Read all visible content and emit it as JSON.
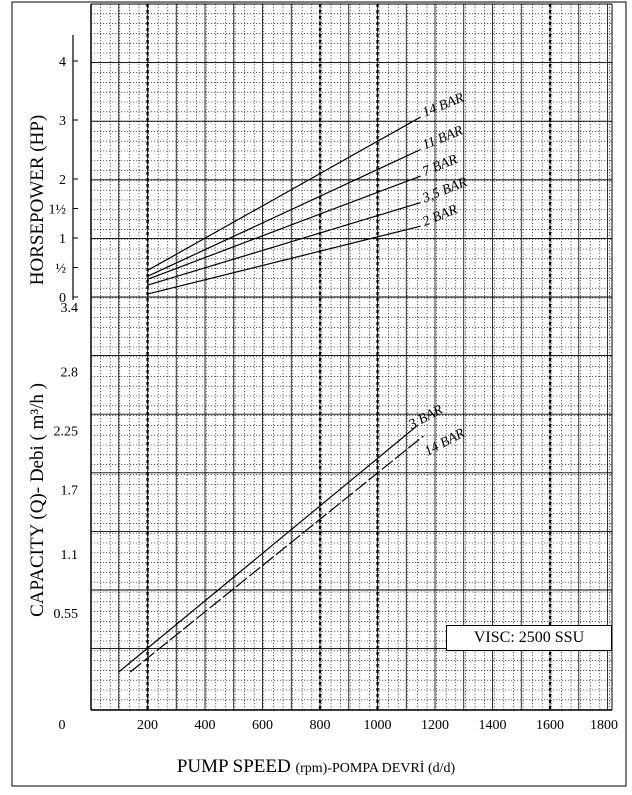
{
  "chart_data": [
    {
      "type": "line",
      "name": "horsepower",
      "ylabel": "HORSEPOWER  (HP)",
      "xlabel": "",
      "xlim": [
        0,
        1800
      ],
      "ylim": [
        0,
        4
      ],
      "yticks": [
        {
          "value": 0,
          "label": "0"
        },
        {
          "value": 0.5,
          "label": "½"
        },
        {
          "value": 1,
          "label": "1"
        },
        {
          "value": 1.5,
          "label": "1½"
        },
        {
          "value": 2,
          "label": "2"
        },
        {
          "value": 3,
          "label": "3"
        },
        {
          "value": 4,
          "label": "4"
        }
      ],
      "series": [
        {
          "name": "14 BAR",
          "x": [
            200,
            1150
          ],
          "y": [
            0.45,
            3.05
          ]
        },
        {
          "name": "11 BAR",
          "x": [
            200,
            1150
          ],
          "y": [
            0.35,
            2.5
          ]
        },
        {
          "name": "7 BAR",
          "x": [
            200,
            1150
          ],
          "y": [
            0.3,
            2.05
          ]
        },
        {
          "name": "3,5 BAR",
          "x": [
            200,
            1150
          ],
          "y": [
            0.2,
            1.6
          ]
        },
        {
          "name": "2 BAR",
          "x": [
            200,
            1150
          ],
          "y": [
            0.05,
            1.2
          ]
        }
      ]
    },
    {
      "type": "line",
      "name": "capacity",
      "ylabel": "CAPACITY (Q)- Debi ( m³/h )",
      "xlabel": "PUMP SPEED (rpm)-POMPA DEVRİ (d/d)",
      "xlim": [
        0,
        1800
      ],
      "ylim": [
        -0.4,
        3.6
      ],
      "ytick_values": [
        0.55,
        1.1,
        1.7,
        2.25,
        2.8,
        3.4
      ],
      "ytick_labels": [
        "0.55",
        "1.1",
        "1.7",
        "2.25",
        "2.8",
        "3.4"
      ],
      "xticks": [
        0,
        200,
        400,
        600,
        800,
        1000,
        1200,
        1400,
        1600,
        1800
      ],
      "series": [
        {
          "name": "3 BAR",
          "x": [
            100,
            1140
          ],
          "y": [
            0.0,
            2.3
          ]
        },
        {
          "name": "14 BAR",
          "x": [
            140,
            1160
          ],
          "y": [
            0.0,
            2.2
          ]
        }
      ]
    }
  ],
  "x_axis_title": {
    "main": "PUMP SPEED ",
    "small": "(rpm)-POMPA DEVRİ (d/d)"
  },
  "visc_label": "VISC:    2500 SSU"
}
